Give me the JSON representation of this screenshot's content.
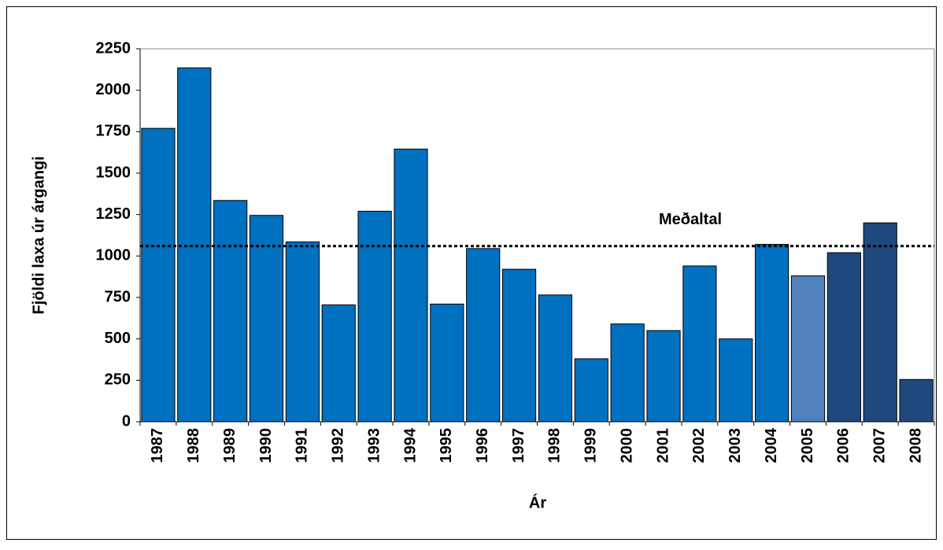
{
  "chart_data": {
    "type": "bar",
    "x_label": "Ár",
    "y_label": "Fjöldi laxa úr árgangi",
    "categories": [
      "1987",
      "1988",
      "1989",
      "1990",
      "1991",
      "1992",
      "1993",
      "1994",
      "1995",
      "1996",
      "1997",
      "1998",
      "1999",
      "2000",
      "2001",
      "2002",
      "2003",
      "2004",
      "2005",
      "2006",
      "2007",
      "2008"
    ],
    "values": [
      1770,
      2135,
      1335,
      1245,
      1085,
      705,
      1270,
      1645,
      710,
      1045,
      920,
      765,
      380,
      590,
      550,
      940,
      500,
      1070,
      880,
      1020,
      1200,
      255
    ],
    "colors": [
      "#0070c0",
      "#0070c0",
      "#0070c0",
      "#0070c0",
      "#0070c0",
      "#0070c0",
      "#0070c0",
      "#0070c0",
      "#0070c0",
      "#0070c0",
      "#0070c0",
      "#0070c0",
      "#0070c0",
      "#0070c0",
      "#0070c0",
      "#0070c0",
      "#0070c0",
      "#0070c0",
      "#4f81bd",
      "#1f497d",
      "#1f497d",
      "#1f497d"
    ],
    "ylim": [
      0,
      2250
    ],
    "yticks": [
      0,
      250,
      500,
      750,
      1000,
      1250,
      1500,
      1750,
      2000,
      2250
    ],
    "mean": {
      "label": "Meðaltal",
      "value": 1060
    }
  }
}
